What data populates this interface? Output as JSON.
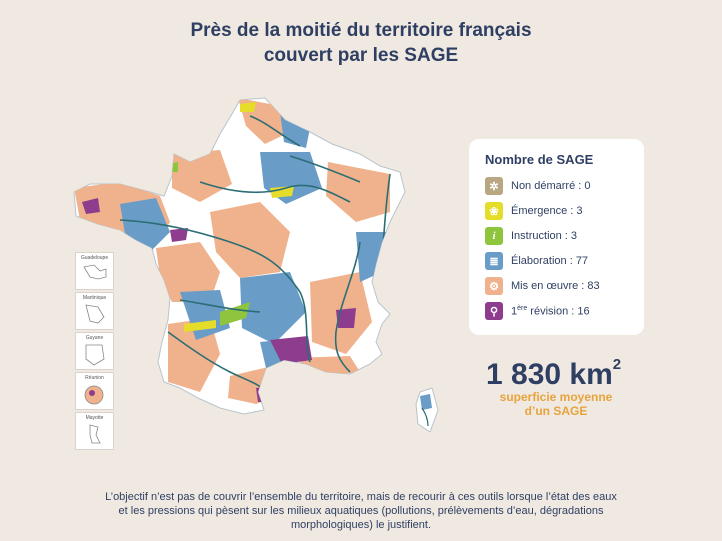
{
  "title": {
    "line1": "Près de la moitié du territoire français",
    "line2": "couvert par les SAGE"
  },
  "legend": {
    "title": "Nombre de SAGE",
    "items": [
      {
        "label": "Non démarré : 0",
        "color": "#b8a782",
        "icon": "compass-icon",
        "glyph": "✲"
      },
      {
        "label": "Émergence : 3",
        "color": "#e6dd2a",
        "icon": "sprout-icon",
        "glyph": "❀"
      },
      {
        "label": "Instruction : 3",
        "color": "#8fc43d",
        "icon": "info-icon",
        "glyph": "i"
      },
      {
        "label": "Élaboration : 77",
        "color": "#6a9cc8",
        "icon": "document-icon",
        "glyph": "≣"
      },
      {
        "label": "Mis en œuvre : 83",
        "color": "#f0b28c",
        "icon": "gear-icon",
        "glyph": "⚙"
      },
      {
        "label_prefix": "1",
        "label_sup": "ère",
        "label_rest": " révision : 16",
        "color": "#8e3c8e",
        "icon": "magnifier-icon",
        "glyph": "⚲"
      }
    ]
  },
  "insets": [
    "Guadeloupe",
    "Martinique",
    "Guyane",
    "Réunion",
    "Mayotte"
  ],
  "stat": {
    "value": "1 830 km",
    "exponent": "2",
    "caption_line1": "superficie moyenne",
    "caption_line2": "d’un SAGE"
  },
  "footer": {
    "line1": "L’objectif n’est pas de couvrir l’ensemble du territoire, mais de recourir à ces outils lorsque l’état des eaux",
    "line2": "et les pressions qui pèsent sur les milieux aquatiques (pollutions, prélèvements d’eau, dégradations",
    "line3": "morphologiques) le justifient."
  },
  "colors": {
    "background": "#efe9e1",
    "title": "#2f3f63",
    "accent": "#e8a33d",
    "river": "#2b6e74",
    "land": "#ffffff"
  }
}
